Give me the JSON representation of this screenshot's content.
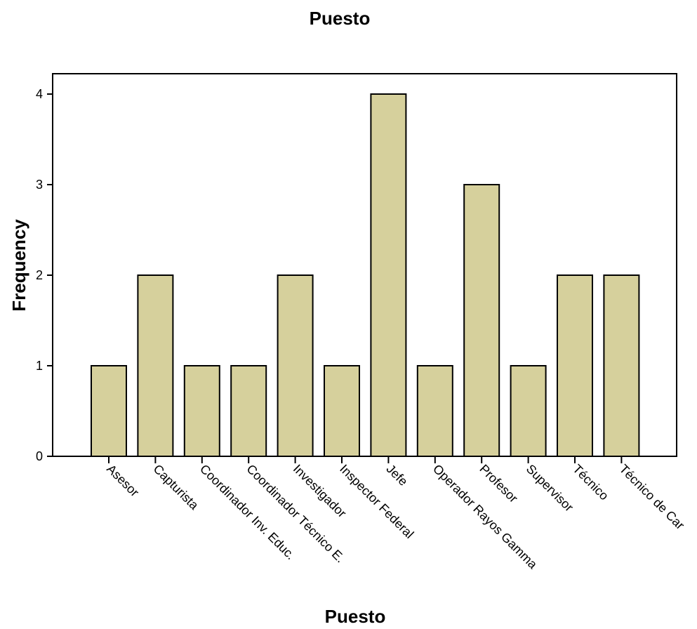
{
  "chart_data": {
    "type": "bar",
    "title": "Puesto",
    "xlabel": "Puesto",
    "ylabel": "Frequency",
    "categories": [
      "Asesor",
      "Capturista",
      "Coordinador Inv. Educ.",
      "Coordinador Técnico E.",
      "Investigador",
      "Inspector Federal",
      "Jefe",
      "Operador Rayos Gamma",
      "Profesor",
      "Supervisor",
      "Técnico",
      "Técnico de Car"
    ],
    "values": [
      1,
      2,
      1,
      1,
      2,
      1,
      4,
      1,
      3,
      1,
      2,
      2
    ],
    "yticks": [
      "0",
      "1",
      "2",
      "3",
      "4"
    ],
    "ylim": [
      0,
      4
    ],
    "grid": false,
    "legend": "none",
    "colors": {
      "bar_fill": "#d6d09c",
      "bar_stroke": "#000000"
    }
  }
}
